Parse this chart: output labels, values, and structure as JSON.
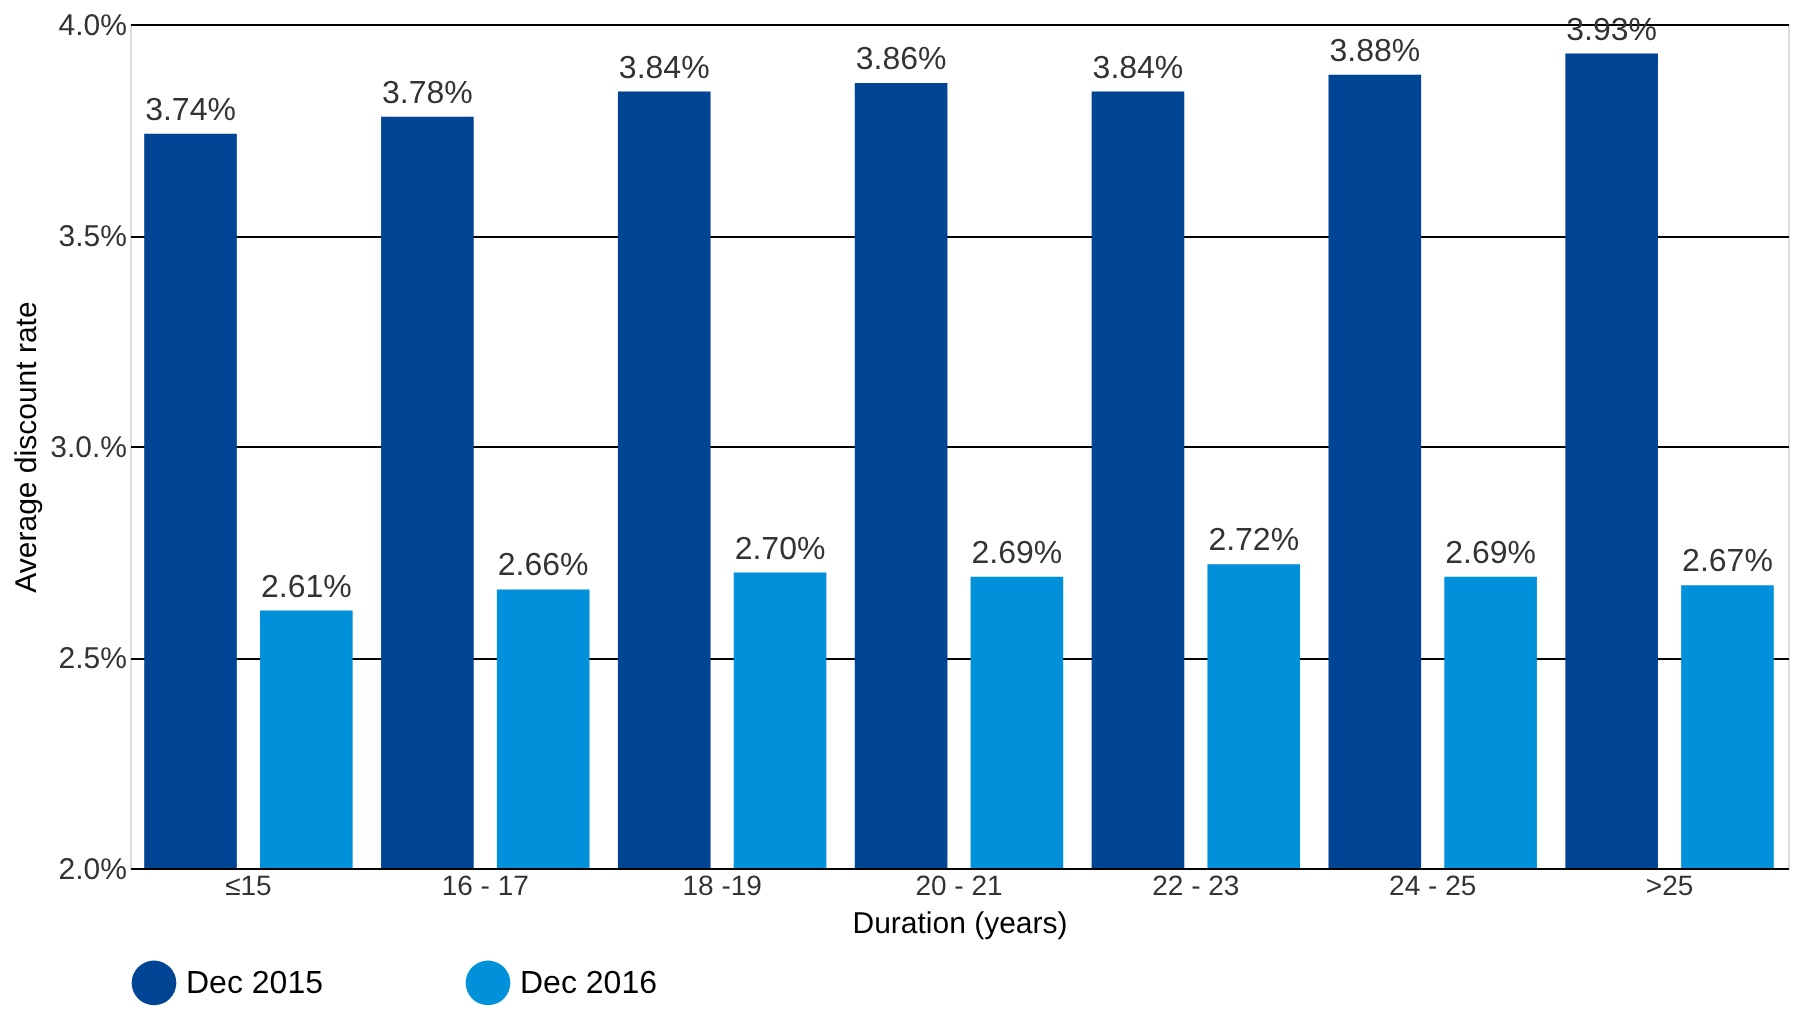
{
  "chart_data": {
    "type": "bar",
    "xlabel": "Duration (years)",
    "ylabel": "Average discount rate",
    "categories": [
      "≤15",
      "16 - 17",
      "18 -19",
      "20 - 21",
      "22 - 23",
      "24 - 25",
      ">25"
    ],
    "series": [
      {
        "name": "Dec 2015",
        "color": "#004494",
        "values": [
          3.74,
          3.78,
          3.84,
          3.86,
          3.84,
          3.88,
          3.93
        ],
        "value_labels": [
          "3.74%",
          "3.78%",
          "3.84%",
          "3.86%",
          "3.84%",
          "3.88%",
          "3.93%"
        ]
      },
      {
        "name": "Dec 2016",
        "color": "#0091da",
        "values": [
          2.61,
          2.66,
          2.7,
          2.69,
          2.72,
          2.69,
          2.67
        ],
        "value_labels": [
          "2.61%",
          "2.66%",
          "2.70%",
          "2.69%",
          "2.72%",
          "2.69%",
          "2.67%"
        ]
      }
    ],
    "ylim": [
      2.0,
      4.0
    ],
    "yticks": [
      {
        "value": 2.0,
        "label": "2.0%"
      },
      {
        "value": 2.5,
        "label": "2.5%"
      },
      {
        "value": 3.0,
        "label": "3.0.%"
      },
      {
        "value": 3.5,
        "label": "3.5%"
      },
      {
        "value": 4.0,
        "label": "4.0%"
      }
    ],
    "grid": "y",
    "legend": "bottom left"
  }
}
